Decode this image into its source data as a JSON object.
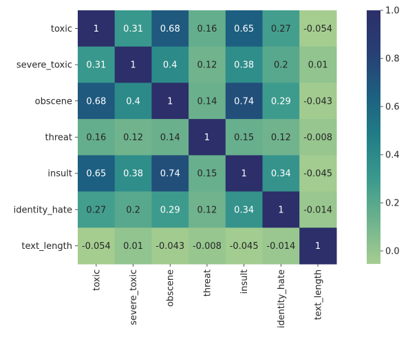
{
  "chart_data": {
    "type": "heatmap",
    "title": "",
    "xlabel": "",
    "ylabel": "",
    "x_labels": [
      "toxic",
      "severe_toxic",
      "obscene",
      "threat",
      "insult",
      "identity_hate",
      "text_length"
    ],
    "y_labels": [
      "toxic",
      "severe_toxic",
      "obscene",
      "threat",
      "insult",
      "identity_hate",
      "text_length"
    ],
    "values": [
      [
        1,
        0.31,
        0.68,
        0.16,
        0.65,
        0.27,
        -0.054
      ],
      [
        0.31,
        1,
        0.4,
        0.12,
        0.38,
        0.2,
        0.01
      ],
      [
        0.68,
        0.4,
        1,
        0.14,
        0.74,
        0.29,
        -0.043
      ],
      [
        0.16,
        0.12,
        0.14,
        1,
        0.15,
        0.12,
        -0.008
      ],
      [
        0.65,
        0.38,
        0.74,
        0.15,
        1,
        0.34,
        -0.045
      ],
      [
        0.27,
        0.2,
        0.29,
        0.12,
        0.34,
        1,
        -0.014
      ],
      [
        -0.054,
        0.01,
        -0.043,
        -0.008,
        -0.045,
        -0.014,
        1
      ]
    ],
    "annotations": [
      [
        "1",
        "0.31",
        "0.68",
        "0.16",
        "0.65",
        "0.27",
        "-0.054"
      ],
      [
        "0.31",
        "1",
        "0.4",
        "0.12",
        "0.38",
        "0.2",
        "0.01"
      ],
      [
        "0.68",
        "0.4",
        "1",
        "0.14",
        "0.74",
        "0.29",
        "-0.043"
      ],
      [
        "0.16",
        "0.12",
        "0.14",
        "1",
        "0.15",
        "0.12",
        "-0.008"
      ],
      [
        "0.65",
        "0.38",
        "0.74",
        "0.15",
        "1",
        "0.34",
        "-0.045"
      ],
      [
        "0.27",
        "0.2",
        "0.29",
        "0.12",
        "0.34",
        "1",
        "-0.014"
      ],
      [
        "-0.054",
        "0.01",
        "-0.043",
        "-0.008",
        "-0.045",
        "-0.014",
        "1"
      ]
    ],
    "colorbar": {
      "vmin": -0.054,
      "vmax": 1,
      "ticks": [
        0.0,
        0.2,
        0.4,
        0.6,
        0.8,
        1.0
      ],
      "tick_labels": [
        "0.0",
        "0.2",
        "0.4",
        "0.6",
        "0.8",
        "1.0"
      ],
      "colormap": "crest",
      "color_stops": [
        "#a5cd90",
        "#6fb38d",
        "#3b9a8d",
        "#217e87",
        "#1d5f80",
        "#273f74",
        "#2c2f69"
      ]
    },
    "text_colors": {
      "light": "#ffffff",
      "dark": "#262626"
    }
  }
}
